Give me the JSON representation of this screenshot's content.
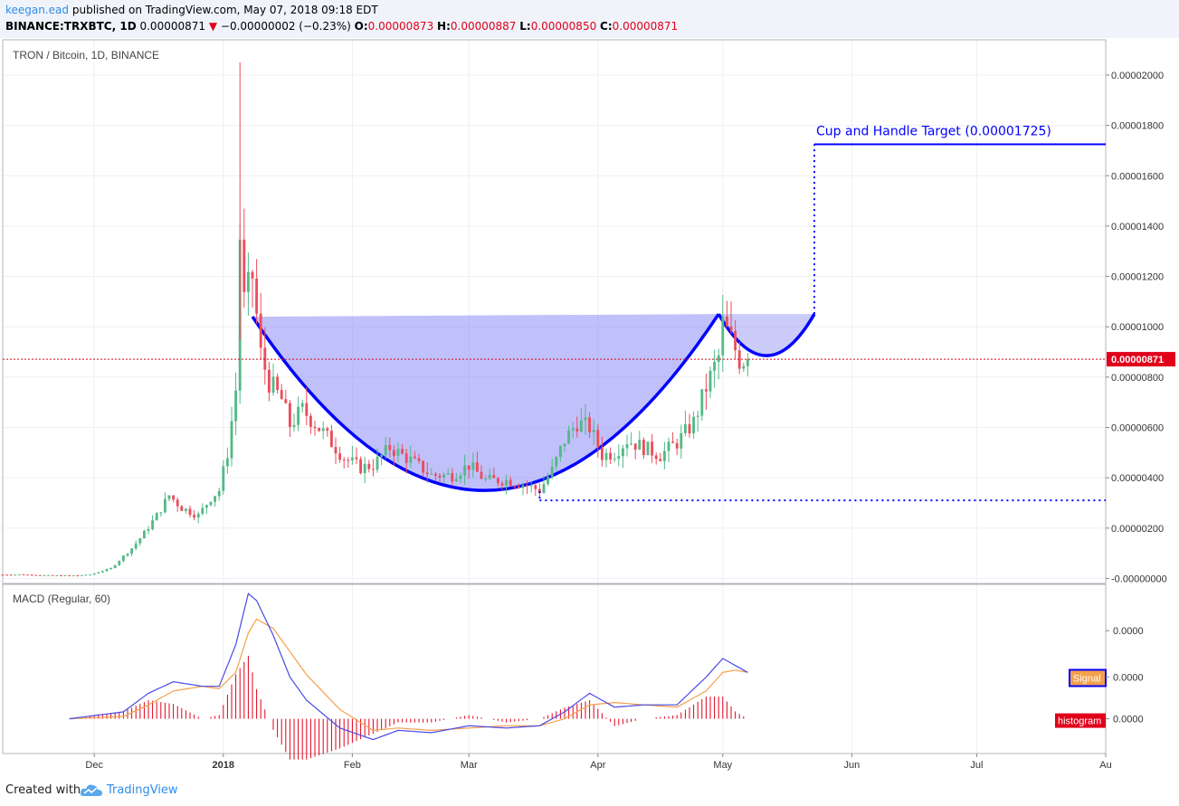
{
  "header": {
    "author": "keegan.ead",
    "published": "published on TradingView.com, May 07, 2018 09:18 EDT",
    "symbol": "BINANCE:TRXBTC, 1D",
    "last": "0.00000871",
    "change_arrow": "▼",
    "change": "−0.00000002 (−0.23%)",
    "o_label": "O:",
    "o_value": "0.00000873",
    "h_label": "H:",
    "h_value": "0.00000887",
    "l_label": "L:",
    "l_value": "0.00000850",
    "c_label": "C:",
    "c_value": "0.00000871"
  },
  "footer": {
    "created_label": "Created with",
    "brand": "TradingView",
    "logo_icon": "tradingview-cloud-icon"
  },
  "colors": {
    "up": "#53b987",
    "down": "#eb4d5c",
    "pattern": "#0000ff",
    "pattern_fill": "#8c8cf5",
    "macd": "#4a4ae6",
    "signal": "#f5a04a",
    "histogram": "#e0001a",
    "price_line": "#e0001a",
    "header_bg": "#f0f3fa"
  },
  "chart_data": {
    "type": "candlestick",
    "title": "TRON / Bitcoin, 1D, BINANCE",
    "price_axis_ticks": [
      "0.00002000",
      "0.00001800",
      "0.00001600",
      "0.00001400",
      "0.00001200",
      "0.00001000",
      "0.00000800",
      "0.00000600",
      "0.00000400",
      "0.00000200",
      "-0.00000000"
    ],
    "price_axis_tick_values": [
      2e-05,
      1.8e-05,
      1.6e-05,
      1.4e-05,
      1.2e-05,
      1e-05,
      8e-06,
      6e-06,
      4e-06,
      2e-06,
      0
    ],
    "ylim": [
      -2e-07,
      2.14e-05
    ],
    "date_range": [
      "2017-11-09",
      "2018-08-01"
    ],
    "x_axis_ticks": [
      {
        "label": "Dec",
        "date": "2017-12-01"
      },
      {
        "label": "2018",
        "date": "2018-01-01",
        "bold": true
      },
      {
        "label": "Feb",
        "date": "2018-02-01"
      },
      {
        "label": "Mar",
        "date": "2018-03-01"
      },
      {
        "label": "Apr",
        "date": "2018-04-01"
      },
      {
        "label": "May",
        "date": "2018-05-01"
      },
      {
        "label": "Jun",
        "date": "2018-06-01"
      },
      {
        "label": "Jul",
        "date": "2018-07-01"
      },
      {
        "label": "Au",
        "date": "2018-08-01"
      }
    ],
    "last_price_label": "0.00000871",
    "last_price": 8.71e-06,
    "close_series": {
      "dates": [
        "2017-11-09",
        "2017-11-13",
        "2017-11-18",
        "2017-11-23",
        "2017-11-27",
        "2017-11-30",
        "2017-12-05",
        "2017-12-10",
        "2017-12-13",
        "2017-12-16",
        "2017-12-19",
        "2017-12-22",
        "2017-12-26",
        "2017-12-29",
        "2017-12-31",
        "2018-01-02",
        "2018-01-04",
        "2018-01-05",
        "2018-01-06",
        "2018-01-08",
        "2018-01-10",
        "2018-01-12",
        "2018-01-15",
        "2018-01-17",
        "2018-01-20",
        "2018-01-25",
        "2018-01-30",
        "2018-02-03",
        "2018-02-06",
        "2018-02-10",
        "2018-02-15",
        "2018-02-20",
        "2018-02-25",
        "2018-03-01",
        "2018-03-05",
        "2018-03-10",
        "2018-03-15",
        "2018-03-18",
        "2018-03-21",
        "2018-03-24",
        "2018-03-27",
        "2018-03-30",
        "2018-04-02",
        "2018-04-05",
        "2018-04-08",
        "2018-04-12",
        "2018-04-16",
        "2018-04-20",
        "2018-04-24",
        "2018-04-27",
        "2018-04-30",
        "2018-05-01",
        "2018-05-03",
        "2018-05-05",
        "2018-05-07"
      ],
      "close": [
        1.5e-07,
        1.6e-07,
        1.3e-07,
        1.2e-07,
        1.2e-07,
        1.5e-07,
        4e-07,
        1.2e-06,
        1.8e-06,
        2.5e-06,
        3.3e-06,
        2.8e-06,
        2.5e-06,
        3.2e-06,
        3.5e-06,
        5e-06,
        7.5e-06,
        1.36e-05,
        1.1e-05,
        1.2e-05,
        8.9e-06,
        7.8e-06,
        7.1e-06,
        6.1e-06,
        6.7e-06,
        5.8e-06,
        4.8e-06,
        4.4e-06,
        4.5e-06,
        5.2e-06,
        4.7e-06,
        4.1e-06,
        4.1e-06,
        4.5e-06,
        3.9e-06,
        3.9e-06,
        3.7e-06,
        3.5e-06,
        4.3e-06,
        5.5e-06,
        6.2e-06,
        6e-06,
        4.9e-06,
        5e-06,
        5.5e-06,
        5.2e-06,
        4.9e-06,
        5.4e-06,
        6.2e-06,
        7.6e-06,
        8.8e-06,
        1.01e-05,
        9.5e-06,
        8.7e-06,
        8.71e-06
      ]
    },
    "spike_high": 2.05e-05,
    "annotations": {
      "target_label": "Cup and Handle Target  (0.00001725)",
      "target_price": 1.725e-05,
      "neckline_price": 1.04e-05,
      "cup_bottom_price": 3.4e-06,
      "support_price": 3.1e-06
    },
    "macd": {
      "title": "MACD (Regular, 60)",
      "axis_ticks": [
        "0.0000",
        "0.0000",
        "0.0000"
      ],
      "signal_label": "Signal",
      "histogram_label": "histogram",
      "dates": [
        "2017-11-25",
        "2017-12-08",
        "2017-12-14",
        "2017-12-20",
        "2017-12-27",
        "2017-12-31",
        "2018-01-04",
        "2018-01-07",
        "2018-01-09",
        "2018-01-13",
        "2018-01-17",
        "2018-01-21",
        "2018-01-29",
        "2018-02-06",
        "2018-02-12",
        "2018-02-20",
        "2018-03-01",
        "2018-03-10",
        "2018-03-18",
        "2018-03-24",
        "2018-03-30",
        "2018-04-05",
        "2018-04-12",
        "2018-04-20",
        "2018-04-27",
        "2018-05-01",
        "2018-05-04",
        "2018-05-07"
      ],
      "macd": [
        0,
        0.3,
        1.1,
        1.6,
        1.4,
        1.4,
        3.2,
        5.4,
        5.1,
        3.6,
        1.8,
        0.8,
        -0.4,
        -0.9,
        -0.5,
        -0.6,
        -0.3,
        -0.4,
        -0.3,
        0.3,
        1.1,
        0.5,
        0.6,
        0.6,
        1.8,
        2.6,
        2.3,
        2.0
      ],
      "signal": [
        0,
        0.1,
        0.6,
        1.2,
        1.4,
        1.3,
        2.0,
        3.7,
        4.3,
        3.9,
        2.9,
        1.9,
        0.4,
        -0.5,
        -0.4,
        -0.5,
        -0.4,
        -0.3,
        -0.3,
        0.0,
        0.6,
        0.7,
        0.6,
        0.5,
        1.2,
        2.0,
        2.1,
        2.0
      ],
      "ylim": [
        -1.5,
        5.8
      ]
    }
  }
}
